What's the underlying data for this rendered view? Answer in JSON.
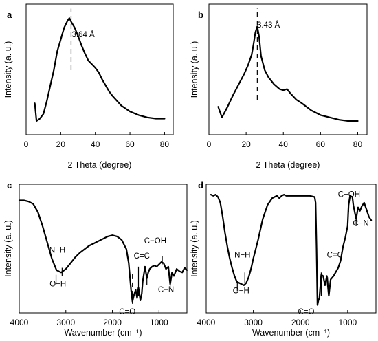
{
  "chart_data": [
    {
      "type": "line",
      "panel": "a",
      "xlabel": "2 Theta  (degree)",
      "ylabel": "Intensity (a. u.)",
      "xlim": [
        0,
        85
      ],
      "ylim": [
        0,
        1
      ],
      "xticks": [
        0,
        20,
        40,
        60,
        80
      ],
      "yticks_shown": false,
      "annotations": [
        {
          "text": "3.64 Å",
          "x": 33,
          "y": 0.78
        }
      ],
      "markers": [
        {
          "x": 26,
          "y0": 0.5,
          "y1": 1.02,
          "style": "dashed"
        }
      ],
      "series": [
        {
          "x": [
            5,
            6,
            8,
            10,
            12,
            14,
            16,
            18,
            20,
            22,
            24,
            25,
            26,
            28,
            30,
            32,
            34,
            36,
            38,
            40,
            42,
            44,
            46,
            48,
            50,
            55,
            60,
            65,
            70,
            75,
            80
          ],
          "values": [
            0.22,
            0.07,
            0.09,
            0.13,
            0.24,
            0.37,
            0.5,
            0.66,
            0.76,
            0.86,
            0.92,
            0.94,
            0.91,
            0.86,
            0.79,
            0.71,
            0.64,
            0.58,
            0.55,
            0.52,
            0.48,
            0.42,
            0.37,
            0.32,
            0.28,
            0.2,
            0.15,
            0.12,
            0.1,
            0.09,
            0.09
          ]
        }
      ]
    },
    {
      "type": "line",
      "panel": "b",
      "xlabel": "2 Theta  (degree)",
      "ylabel": "Intensity (a. u.)",
      "xlim": [
        0,
        85
      ],
      "ylim": [
        0,
        1
      ],
      "xticks": [
        0,
        20,
        40,
        60,
        80
      ],
      "yticks_shown": false,
      "annotations": [
        {
          "text": "3.43 Å",
          "x": 32,
          "y": 0.86
        }
      ],
      "markers": [
        {
          "x": 26,
          "y0": 0.25,
          "y1": 1.02,
          "style": "dashed"
        }
      ],
      "series": [
        {
          "x": [
            5,
            7,
            10,
            13,
            16,
            19,
            21,
            23,
            24,
            25,
            26,
            27,
            28,
            30,
            32,
            35,
            38,
            40,
            42,
            44,
            47,
            50,
            55,
            60,
            65,
            70,
            75,
            80
          ],
          "values": [
            0.19,
            0.1,
            0.19,
            0.29,
            0.38,
            0.47,
            0.54,
            0.63,
            0.72,
            0.82,
            0.87,
            0.78,
            0.62,
            0.5,
            0.44,
            0.38,
            0.34,
            0.33,
            0.34,
            0.3,
            0.25,
            0.22,
            0.16,
            0.12,
            0.1,
            0.08,
            0.07,
            0.07
          ]
        }
      ]
    },
    {
      "type": "line",
      "panel": "c",
      "xlabel": "Wavenumber (cm⁻¹)",
      "ylabel": "Intensity (a. u.)",
      "xlim": [
        4000,
        400
      ],
      "ylim": [
        0,
        1
      ],
      "xticks": [
        4000,
        3000,
        2000,
        1000
      ],
      "yticks_shown": false,
      "annotations": [
        {
          "text": "N−H",
          "x": 3180,
          "y": 0.47
        },
        {
          "text": "O−H",
          "x": 3170,
          "y": 0.18
        },
        {
          "text": "C=O",
          "x": 1680,
          "y": -0.06
        },
        {
          "text": "C=C",
          "x": 1370,
          "y": 0.42
        },
        {
          "text": "C−OH",
          "x": 1080,
          "y": 0.55
        },
        {
          "text": "C−N",
          "x": 850,
          "y": 0.13
        }
      ],
      "markers": [
        {
          "x": 3210,
          "y0": 0.2,
          "y1": 0.28,
          "style": "solid"
        },
        {
          "x": 3080,
          "y0": 0.27,
          "y1": 0.34,
          "style": "solid"
        },
        {
          "x": 1570,
          "y0": 0.03,
          "y1": 0.3,
          "style": "dashed"
        },
        {
          "x": 1440,
          "y0": 0.1,
          "y1": 0.35,
          "style": "solid"
        },
        {
          "x": 1260,
          "y0": 0.19,
          "y1": 0.27,
          "style": "solid"
        },
        {
          "x": 930,
          "y0": 0.37,
          "y1": 0.44,
          "style": "solid"
        },
        {
          "x": 760,
          "y0": 0.17,
          "y1": 0.26,
          "style": "solid"
        }
      ],
      "series": [
        {
          "x": [
            4000,
            3900,
            3800,
            3700,
            3600,
            3500,
            3400,
            3300,
            3200,
            3100,
            3000,
            2900,
            2800,
            2700,
            2600,
            2500,
            2400,
            2300,
            2200,
            2100,
            2000,
            1900,
            1800,
            1700,
            1650,
            1600,
            1570,
            1540,
            1500,
            1470,
            1440,
            1400,
            1370,
            1350,
            1300,
            1260,
            1230,
            1200,
            1150,
            1100,
            1050,
            1000,
            950,
            900,
            850,
            800,
            760,
            720,
            680,
            620,
            560,
            500,
            450,
            400
          ],
          "values": [
            0.92,
            0.92,
            0.91,
            0.89,
            0.82,
            0.7,
            0.56,
            0.42,
            0.32,
            0.3,
            0.33,
            0.38,
            0.43,
            0.47,
            0.5,
            0.53,
            0.55,
            0.57,
            0.59,
            0.61,
            0.62,
            0.61,
            0.58,
            0.5,
            0.38,
            0.15,
            0.05,
            0.1,
            0.15,
            0.08,
            0.17,
            0.06,
            0.12,
            0.22,
            0.35,
            0.25,
            0.3,
            0.33,
            0.35,
            0.36,
            0.35,
            0.37,
            0.39,
            0.38,
            0.33,
            0.35,
            0.2,
            0.3,
            0.27,
            0.33,
            0.31,
            0.3,
            0.34,
            0.32
          ]
        }
      ]
    },
    {
      "type": "line",
      "panel": "d",
      "xlabel": "Wavenumber (cm⁻¹)",
      "ylabel": "Intensity (a. u.)",
      "xlim": [
        4000,
        400
      ],
      "ylim": [
        0,
        1
      ],
      "xticks": [
        4000,
        3000,
        2000,
        1000
      ],
      "yticks_shown": false,
      "annotations": [
        {
          "text": "N−H",
          "x": 3230,
          "y": 0.43
        },
        {
          "text": "O−H",
          "x": 3260,
          "y": 0.12
        },
        {
          "text": "C=O",
          "x": 1880,
          "y": -0.06
        },
        {
          "text": "C=C",
          "x": 1270,
          "y": 0.43
        },
        {
          "text": "C−OH",
          "x": 970,
          "y": 0.95
        },
        {
          "text": "C−N",
          "x": 720,
          "y": 0.7
        }
      ],
      "markers": [
        {
          "x": 3340,
          "y0": 0.14,
          "y1": 0.23,
          "style": "solid"
        },
        {
          "x": 3180,
          "y0": 0.21,
          "y1": 0.3,
          "style": "solid"
        },
        {
          "x": 1640,
          "y0": 0.02,
          "y1": 0.37,
          "style": "dashed"
        },
        {
          "x": 1560,
          "y0": 0.1,
          "y1": 0.3,
          "style": "solid"
        },
        {
          "x": 1400,
          "y0": 0.16,
          "y1": 0.26,
          "style": "solid"
        },
        {
          "x": 980,
          "y0": 0.82,
          "y1": 0.9,
          "style": "solid"
        },
        {
          "x": 820,
          "y0": 0.7,
          "y1": 0.8,
          "style": "solid"
        }
      ],
      "series": [
        {
          "x": [
            3900,
            3850,
            3800,
            3750,
            3700,
            3650,
            3600,
            3550,
            3500,
            3450,
            3400,
            3350,
            3300,
            3250,
            3200,
            3150,
            3100,
            3050,
            3000,
            2900,
            2800,
            2700,
            2600,
            2500,
            2450,
            2400,
            2350,
            2300,
            2200,
            2100,
            2000,
            1900,
            1800,
            1700,
            1680,
            1660,
            1640,
            1620,
            1600,
            1560,
            1520,
            1480,
            1440,
            1400,
            1360,
            1300,
            1200,
            1150,
            1100,
            1050,
            1000,
            980,
            950,
            900,
            880,
            850,
            820,
            780,
            740,
            700,
            650,
            600,
            550,
            500
          ],
          "values": [
            0.97,
            0.96,
            0.97,
            0.95,
            0.9,
            0.78,
            0.64,
            0.52,
            0.42,
            0.34,
            0.27,
            0.22,
            0.21,
            0.2,
            0.19,
            0.21,
            0.26,
            0.33,
            0.42,
            0.58,
            0.76,
            0.88,
            0.94,
            0.96,
            0.94,
            0.96,
            0.97,
            0.96,
            0.96,
            0.96,
            0.96,
            0.96,
            0.96,
            0.95,
            0.9,
            0.5,
            0.02,
            0.06,
            0.08,
            0.28,
            0.27,
            0.19,
            0.27,
            0.1,
            0.24,
            0.27,
            0.34,
            0.4,
            0.52,
            0.6,
            0.7,
            0.88,
            0.96,
            0.95,
            0.88,
            0.82,
            0.76,
            0.86,
            0.83,
            0.87,
            0.9,
            0.84,
            0.78,
            0.75
          ]
        }
      ]
    }
  ]
}
